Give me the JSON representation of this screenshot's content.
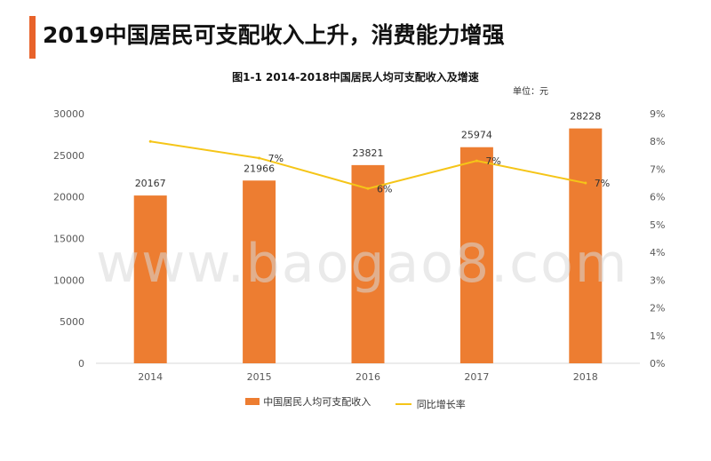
{
  "header": {
    "title": "2019中国居民可支配收入上升，消费能力增强"
  },
  "colors": {
    "accent": "#e8622a",
    "bar": "#ed7d31",
    "line": "#f5c518"
  },
  "watermark": "www.baogao8.com",
  "chart_data": {
    "type": "bar",
    "title": "图1-1 2014-2018中国居民人均可支配收入及增速",
    "unit_label": "单位：元",
    "categories": [
      "2014",
      "2015",
      "2016",
      "2017",
      "2018"
    ],
    "series": [
      {
        "name": "中国居民人均可支配收入",
        "type": "bar",
        "axis": "left",
        "values": [
          20167,
          21966,
          23821,
          25974,
          28228
        ],
        "labels": [
          "20167",
          "21966",
          "23821",
          "25974",
          "28228"
        ]
      },
      {
        "name": "同比增长率",
        "type": "line",
        "axis": "right",
        "values": [
          8.0,
          7.4,
          6.3,
          7.3,
          6.5
        ],
        "labels": [
          "",
          "7%",
          "6%",
          "7%",
          "7%"
        ]
      }
    ],
    "y_left": {
      "ylim": [
        0,
        30000
      ],
      "ticks": [
        "0",
        "5000",
        "10000",
        "15000",
        "20000",
        "25000",
        "30000"
      ]
    },
    "y_right": {
      "ylim": [
        0,
        9
      ],
      "ticks": [
        "0%",
        "1%",
        "2%",
        "3%",
        "4%",
        "5%",
        "6%",
        "7%",
        "8%",
        "9%"
      ]
    },
    "legend_position": "bottom",
    "grid": false
  }
}
